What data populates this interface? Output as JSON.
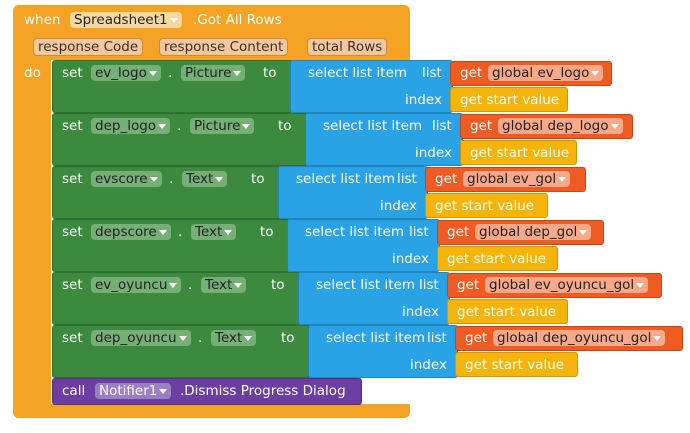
{
  "event": {
    "keyword": "when",
    "component": "Spreadsheet1",
    "event": ".Got All Rows",
    "parameters": [
      "response Code",
      "response Content",
      "total Rows"
    ],
    "do": "do"
  },
  "statements": [
    {
      "keyword": "set",
      "component": "ev_logo",
      "dot": ".",
      "property": "Picture",
      "to": "to",
      "block": "select list item",
      "list_label": "list",
      "get": "get",
      "variable": "global ev_logo",
      "index_label": "index",
      "index_value": "get start value"
    },
    {
      "keyword": "set",
      "component": "dep_logo",
      "dot": ".",
      "property": "Picture",
      "to": "to",
      "block": "select list item",
      "list_label": "list",
      "get": "get",
      "variable": "global dep_logo",
      "index_label": "index",
      "index_value": "get start value"
    },
    {
      "keyword": "set",
      "component": "evscore",
      "dot": ".",
      "property": "Text",
      "to": "to",
      "block": "select list item",
      "list_label": "list",
      "get": "get",
      "variable": "global ev_gol",
      "index_label": "index",
      "index_value": "get start value"
    },
    {
      "keyword": "set",
      "component": "depscore",
      "dot": ".",
      "property": "Text",
      "to": "to",
      "block": "select list item",
      "list_label": "list",
      "get": "get",
      "variable": "global dep_gol",
      "index_label": "index",
      "index_value": "get start value"
    },
    {
      "keyword": "set",
      "component": "ev_oyuncu",
      "dot": ".",
      "property": "Text",
      "to": "to",
      "block": "select list item",
      "list_label": "list",
      "get": "get",
      "variable": "global ev_oyuncu_gol",
      "index_label": "index",
      "index_value": "get start value"
    },
    {
      "keyword": "set",
      "component": "dep_oyuncu",
      "dot": ".",
      "property": "Text",
      "to": "to",
      "block": "select list item",
      "list_label": "list",
      "get": "get",
      "variable": "global dep_oyuncu_gol",
      "index_label": "index",
      "index_value": "get start value"
    }
  ],
  "call": {
    "keyword": "call",
    "component": "Notifier1",
    "method": ".Dismiss Progress Dialog"
  }
}
